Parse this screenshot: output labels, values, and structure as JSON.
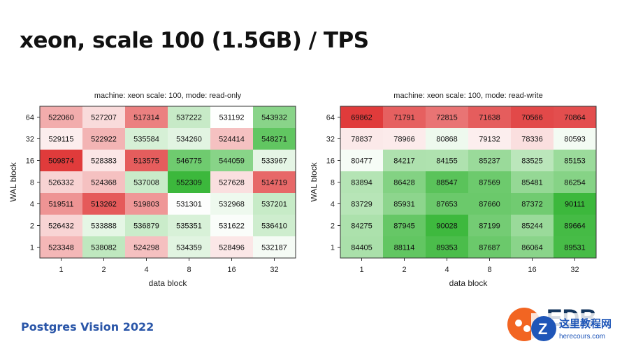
{
  "slide": {
    "title": "xeon, scale 100 (1.5GB) / TPS",
    "footer": "Postgres Vision 2022",
    "logo_text": "EDB",
    "watermark_cn": "这里教程网",
    "watermark_url": "herecours.com"
  },
  "colors": {
    "low": "#e03b3b",
    "mid": "#ffffff",
    "high": "#3cb83c",
    "title_blue": "#2a56a8",
    "logo_orange": "#f26522"
  },
  "chart_data": [
    {
      "type": "heatmap",
      "title": "machine: xeon scale: 100, mode: read-only",
      "xlabel": "data block",
      "ylabel": "WAL block",
      "x_categories": [
        "1",
        "2",
        "4",
        "8",
        "16",
        "32"
      ],
      "y_categories": [
        "64",
        "32",
        "16",
        "8",
        "4",
        "2",
        "1"
      ],
      "values": [
        [
          522060,
          527207,
          517314,
          537222,
          531192,
          543932
        ],
        [
          529115,
          522922,
          535584,
          534260,
          524414,
          548271
        ],
        [
          509874,
          528383,
          513575,
          546775,
          544059,
          533967
        ],
        [
          526332,
          524368,
          537008,
          552309,
          527628,
          514719
        ],
        [
          519511,
          513262,
          519803,
          531301,
          532968,
          537201
        ],
        [
          526432,
          533888,
          536879,
          535351,
          531622,
          536410
        ],
        [
          523348,
          538082,
          524298,
          534359,
          528496,
          532187
        ]
      ]
    },
    {
      "type": "heatmap",
      "title": "machine: xeon scale: 100, mode: read-write",
      "xlabel": "data block",
      "ylabel": "WAL block",
      "x_categories": [
        "1",
        "2",
        "4",
        "8",
        "16",
        "32"
      ],
      "y_categories": [
        "64",
        "32",
        "16",
        "8",
        "4",
        "2",
        "1"
      ],
      "values": [
        [
          69862,
          71791,
          72815,
          71638,
          70566,
          70864
        ],
        [
          78837,
          78966,
          80868,
          79132,
          78336,
          80593
        ],
        [
          80477,
          84217,
          84155,
          85237,
          83525,
          85153
        ],
        [
          83894,
          86428,
          88547,
          87569,
          85481,
          86254
        ],
        [
          83729,
          85931,
          87653,
          87660,
          87372,
          90111
        ],
        [
          84275,
          87945,
          90028,
          87199,
          85244,
          89664
        ],
        [
          84405,
          88114,
          89353,
          87687,
          86064,
          89531
        ]
      ]
    }
  ]
}
